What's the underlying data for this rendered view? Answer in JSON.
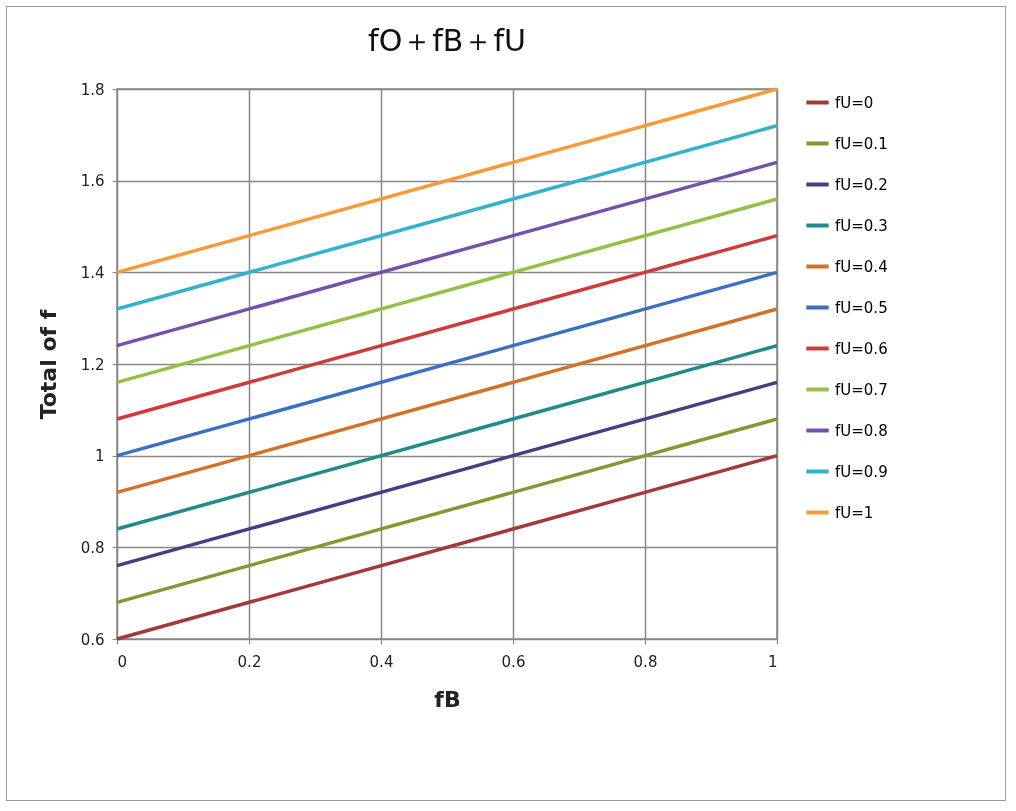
{
  "chart_data": {
    "type": "line",
    "title": "fO＋fB＋fU",
    "xlabel": "fB",
    "ylabel": "Total of f",
    "x": [
      0,
      1
    ],
    "series": [
      {
        "name": "fU=0",
        "color": "#a33a3a",
        "values": [
          0.6,
          1.0
        ]
      },
      {
        "name": "fU=0.1",
        "color": "#7f9a35",
        "values": [
          0.68,
          1.08
        ]
      },
      {
        "name": "fU=0.2",
        "color": "#4b3b82",
        "values": [
          0.76,
          1.16
        ]
      },
      {
        "name": "fU=0.3",
        "color": "#22898c",
        "values": [
          0.84,
          1.24
        ]
      },
      {
        "name": "fU=0.4",
        "color": "#d2722a",
        "values": [
          0.92,
          1.32
        ]
      },
      {
        "name": "fU=0.5",
        "color": "#3c6fc2",
        "values": [
          1.0,
          1.4
        ]
      },
      {
        "name": "fU=0.6",
        "color": "#cc3c3c",
        "values": [
          1.08,
          1.48
        ]
      },
      {
        "name": "fU=0.7",
        "color": "#94c046",
        "values": [
          1.16,
          1.56
        ]
      },
      {
        "name": "fU=0.8",
        "color": "#7352aa",
        "values": [
          1.24,
          1.64
        ]
      },
      {
        "name": "fU=0.9",
        "color": "#35b2cb",
        "values": [
          1.32,
          1.72
        ]
      },
      {
        "name": "fU=1",
        "color": "#f79a3a",
        "values": [
          1.4,
          1.8
        ]
      }
    ],
    "xlim": [
      0,
      1
    ],
    "xticks": [
      0,
      0.2,
      0.4,
      0.6,
      0.8,
      1
    ],
    "ylim": [
      0.6,
      1.8
    ],
    "yticks": [
      0.6,
      0.8,
      1,
      1.2,
      1.4,
      1.6,
      1.8
    ],
    "grid": true,
    "legend": "right",
    "marker": "none",
    "line_style": "solid"
  }
}
